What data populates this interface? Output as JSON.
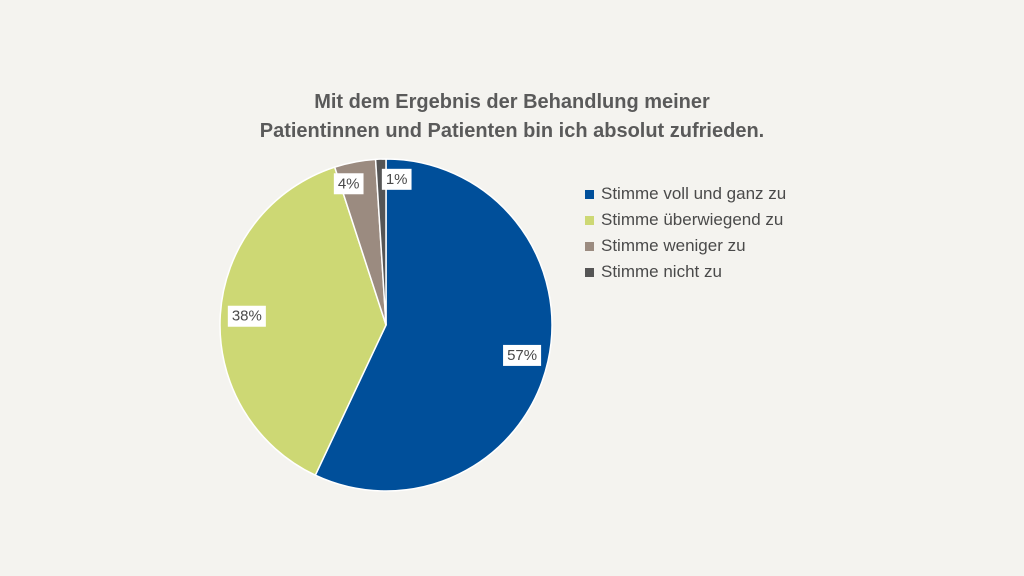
{
  "chart_data": {
    "type": "pie",
    "title_lines": [
      "Mit dem Ergebnis der Behandlung meiner",
      "Patientinnen und Patienten bin ich absolut zufrieden."
    ],
    "unit": "%",
    "slices": [
      {
        "label": "Stimme voll und ganz zu",
        "value": 57,
        "color": "#004f9a"
      },
      {
        "label": "Stimme überwiegend zu",
        "value": 38,
        "color": "#cdd874"
      },
      {
        "label": "Stimme weniger zu",
        "value": 4,
        "color": "#9b8b80"
      },
      {
        "label": "Stimme nicht zu",
        "value": 1,
        "color": "#555555"
      }
    ],
    "legend_position": "right"
  }
}
